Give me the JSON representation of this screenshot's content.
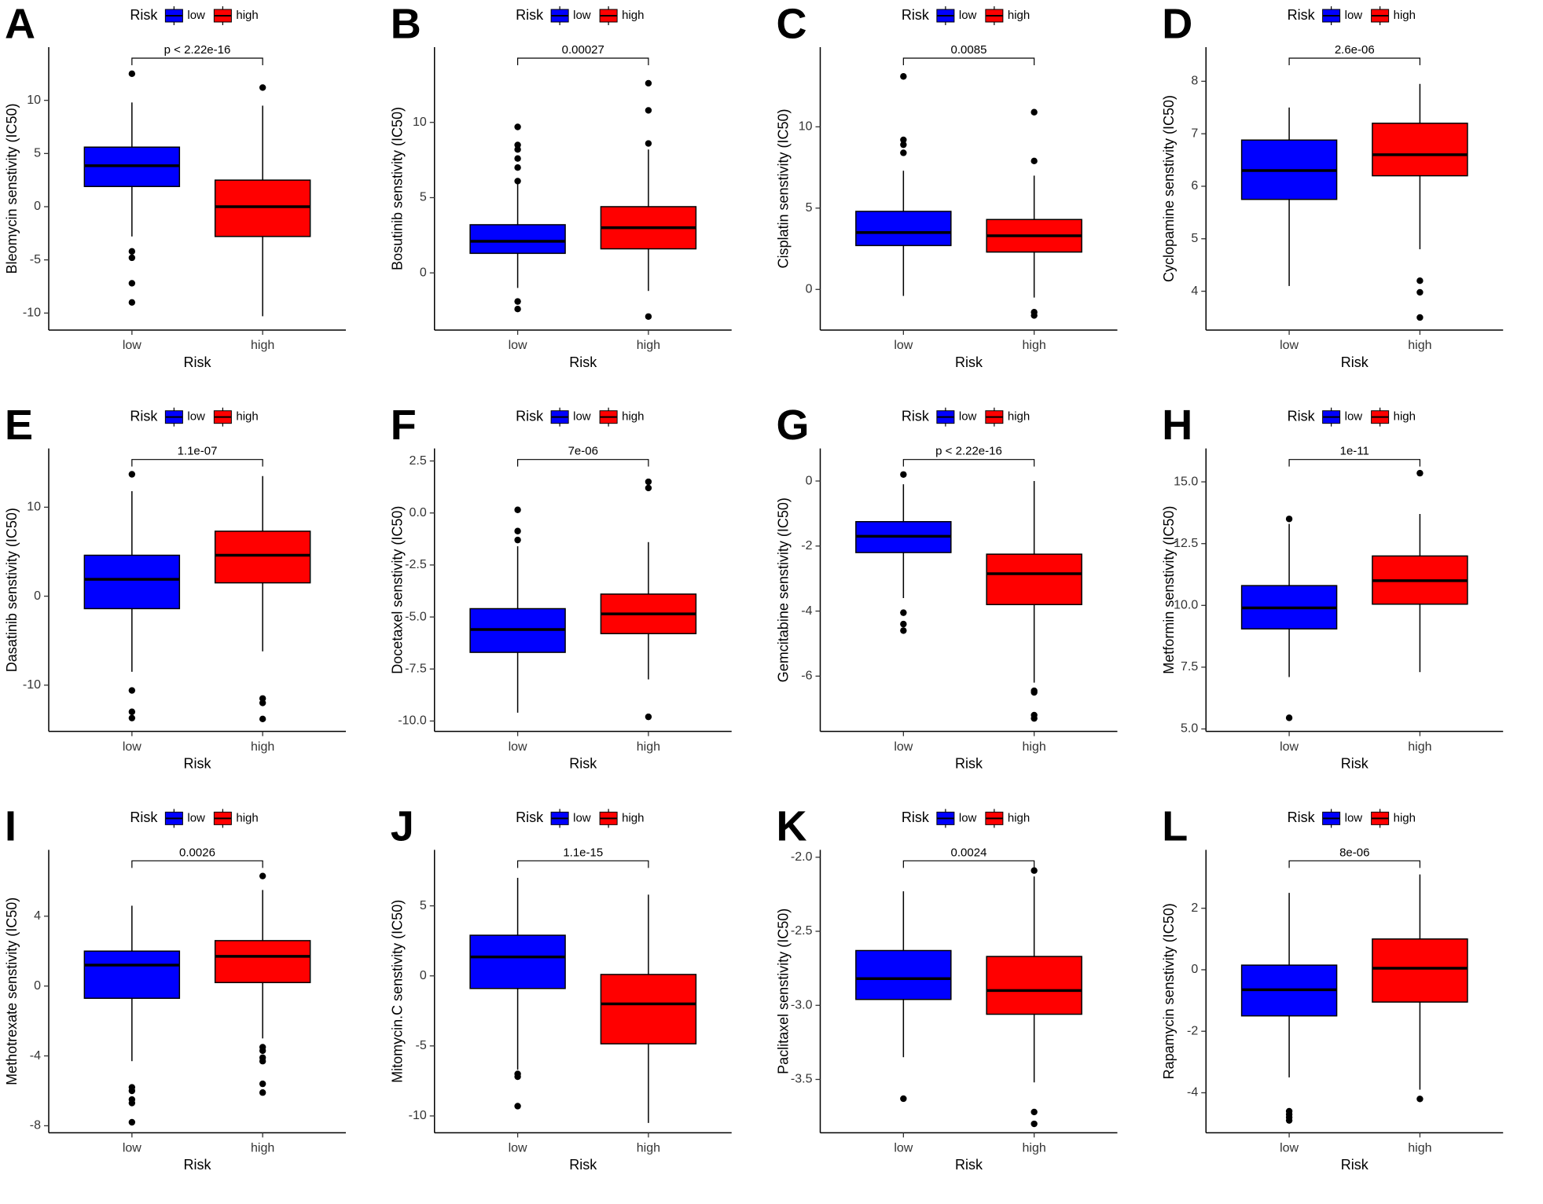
{
  "chart_data": [
    {
      "type": "box",
      "panel_label": "A",
      "ylabel": "Bleomycin senstivity (IC50)",
      "xlabel": "Risk",
      "legend_title": "Risk",
      "annotation": "p < 2.22e-16",
      "categories": [
        "low",
        "high"
      ],
      "ylim": [
        -11.6,
        15
      ],
      "yticks": [
        -10,
        -5,
        0,
        5,
        10
      ],
      "series": [
        {
          "name": "low",
          "color": "#0000ff",
          "whislo": -2.8,
          "q1": 1.9,
          "med": 3.85,
          "q3": 5.6,
          "whishi": 9.8,
          "outliers": [
            12.5,
            -4.2,
            -4.8,
            -7.2,
            -9
          ]
        },
        {
          "name": "high",
          "color": "#ff0000",
          "whislo": -10.3,
          "q1": -2.8,
          "med": 0,
          "q3": 2.5,
          "whishi": 9.5,
          "outliers": [
            11.2
          ]
        }
      ]
    },
    {
      "type": "box",
      "panel_label": "B",
      "ylabel": "Bosutinib senstivity (IC50)",
      "xlabel": "Risk",
      "legend_title": "Risk",
      "annotation": "0.00027",
      "categories": [
        "low",
        "high"
      ],
      "ylim": [
        -3.8,
        15
      ],
      "yticks": [
        0,
        5,
        10
      ],
      "series": [
        {
          "name": "low",
          "color": "#0000ff",
          "whislo": -1.0,
          "q1": 1.3,
          "med": 2.1,
          "q3": 3.2,
          "whishi": 5.9,
          "outliers": [
            6.1,
            7.0,
            7.6,
            8.2,
            8.5,
            9.7,
            -1.9,
            -2.4
          ]
        },
        {
          "name": "high",
          "color": "#ff0000",
          "whislo": -1.2,
          "q1": 1.6,
          "med": 3.0,
          "q3": 4.4,
          "whishi": 8.2,
          "outliers": [
            8.6,
            10.8,
            12.6,
            -2.9
          ]
        }
      ]
    },
    {
      "type": "box",
      "panel_label": "C",
      "ylabel": "Cisplatin senstivity (IC50)",
      "xlabel": "Risk",
      "legend_title": "Risk",
      "annotation": "0.0085",
      "categories": [
        "low",
        "high"
      ],
      "ylim": [
        -2.5,
        14.9
      ],
      "yticks": [
        0,
        5,
        10
      ],
      "series": [
        {
          "name": "low",
          "color": "#0000ff",
          "whislo": -0.4,
          "q1": 2.7,
          "med": 3.5,
          "q3": 4.8,
          "whishi": 7.3,
          "outliers": [
            8.4,
            8.9,
            9.2,
            13.1
          ]
        },
        {
          "name": "high",
          "color": "#ff0000",
          "whislo": -0.5,
          "q1": 2.3,
          "med": 3.3,
          "q3": 4.3,
          "whishi": 7.0,
          "outliers": [
            7.9,
            10.9,
            -1.4,
            -1.6
          ]
        }
      ]
    },
    {
      "type": "box",
      "panel_label": "D",
      "ylabel": "Cyclopamine senstivity (IC50)",
      "xlabel": "Risk",
      "legend_title": "Risk",
      "annotation": "2.6e-06",
      "categories": [
        "low",
        "high"
      ],
      "ylim": [
        3.26,
        8.65
      ],
      "yticks": [
        4,
        5,
        6,
        7,
        8
      ],
      "series": [
        {
          "name": "low",
          "color": "#0000ff",
          "whislo": 4.1,
          "q1": 5.75,
          "med": 6.3,
          "q3": 6.88,
          "whishi": 7.5,
          "outliers": []
        },
        {
          "name": "high",
          "color": "#ff0000",
          "whislo": 4.8,
          "q1": 6.2,
          "med": 6.6,
          "q3": 7.2,
          "whishi": 7.95,
          "outliers": [
            4.2,
            3.98,
            3.5
          ]
        }
      ]
    },
    {
      "type": "box",
      "panel_label": "E",
      "ylabel": "Dasatinib senstivity (IC50)",
      "xlabel": "Risk",
      "legend_title": "Risk",
      "annotation": "1.1e-07",
      "categories": [
        "low",
        "high"
      ],
      "ylim": [
        -15.2,
        16.6
      ],
      "yticks": [
        -10,
        0,
        10
      ],
      "series": [
        {
          "name": "low",
          "color": "#0000ff",
          "whislo": -8.5,
          "q1": -1.4,
          "med": 1.9,
          "q3": 4.6,
          "whishi": 11.8,
          "outliers": [
            13.7,
            -10.6,
            -13,
            -13.7
          ]
        },
        {
          "name": "high",
          "color": "#ff0000",
          "whislo": -6.2,
          "q1": 1.5,
          "med": 4.6,
          "q3": 7.3,
          "whishi": 13.5,
          "outliers": [
            -11.5,
            -12,
            -13.8
          ]
        }
      ]
    },
    {
      "type": "box",
      "panel_label": "F",
      "ylabel": "Docetaxel senstivity (IC50)",
      "xlabel": "Risk",
      "legend_title": "Risk",
      "annotation": "7e-06",
      "categories": [
        "low",
        "high"
      ],
      "ylim": [
        -10.5,
        3.1
      ],
      "yticks": [
        {
          "value": -10,
          "label": "-10.0"
        },
        -7.5,
        {
          "value": -5,
          "label": "-5.0"
        },
        -2.5,
        {
          "value": 0,
          "label": "0.0"
        },
        2.5
      ],
      "series": [
        {
          "name": "low",
          "color": "#0000ff",
          "whislo": -9.6,
          "q1": -6.7,
          "med": -5.6,
          "q3": -4.6,
          "whishi": -1.6,
          "outliers": [
            0.15,
            -0.87,
            -1.3
          ]
        },
        {
          "name": "high",
          "color": "#ff0000",
          "whislo": -8.0,
          "q1": -5.8,
          "med": -4.85,
          "q3": -3.9,
          "whishi": -1.4,
          "outliers": [
            1.5,
            1.2,
            -9.8
          ]
        }
      ]
    },
    {
      "type": "box",
      "panel_label": "G",
      "ylabel": "Gemcitabine senstivity (IC50)",
      "xlabel": "Risk",
      "legend_title": "Risk",
      "annotation": "p < 2.22e-16",
      "categories": [
        "low",
        "high"
      ],
      "ylim": [
        -7.7,
        1.0
      ],
      "yticks": [
        -6,
        -4,
        -2,
        0
      ],
      "series": [
        {
          "name": "low",
          "color": "#0000ff",
          "whislo": -3.6,
          "q1": -2.2,
          "med": -1.7,
          "q3": -1.25,
          "whishi": -0.1,
          "outliers": [
            0.2,
            -4.05,
            -4.4,
            -4.6
          ]
        },
        {
          "name": "high",
          "color": "#ff0000",
          "whislo": -6.2,
          "q1": -3.8,
          "med": -2.85,
          "q3": -2.25,
          "whishi": 0.0,
          "outliers": [
            -6.45,
            -6.5,
            -7.2,
            -7.3
          ]
        }
      ]
    },
    {
      "type": "box",
      "panel_label": "H",
      "ylabel": "Metformin senstivity (IC50)",
      "xlabel": "Risk",
      "legend_title": "Risk",
      "annotation": "1e-11",
      "categories": [
        "low",
        "high"
      ],
      "ylim": [
        4.9,
        16.35
      ],
      "yticks": [
        {
          "value": 5,
          "label": "5.0"
        },
        7.5,
        {
          "value": 10,
          "label": "10.0"
        },
        12.5,
        {
          "value": 15,
          "label": "15.0"
        }
      ],
      "series": [
        {
          "name": "low",
          "color": "#0000ff",
          "whislo": 7.1,
          "q1": 9.05,
          "med": 9.9,
          "q3": 10.8,
          "whishi": 13.3,
          "outliers": [
            13.5,
            5.45
          ]
        },
        {
          "name": "high",
          "color": "#ff0000",
          "whislo": 7.3,
          "q1": 10.05,
          "med": 11.0,
          "q3": 12.0,
          "whishi": 13.7,
          "outliers": [
            15.35
          ]
        }
      ]
    },
    {
      "type": "box",
      "panel_label": "I",
      "ylabel": "Methotrexate senstivity (IC50)",
      "xlabel": "Risk",
      "legend_title": "Risk",
      "annotation": "0.0026",
      "categories": [
        "low",
        "high"
      ],
      "ylim": [
        -8.4,
        7.8
      ],
      "yticks": [
        -8,
        -4,
        0,
        4
      ],
      "series": [
        {
          "name": "low",
          "color": "#0000ff",
          "whislo": -4.3,
          "q1": -0.7,
          "med": 1.2,
          "q3": 2.0,
          "whishi": 4.6,
          "outliers": [
            -5.8,
            -6.0,
            -6.5,
            -6.7,
            -7.8
          ]
        },
        {
          "name": "high",
          "color": "#ff0000",
          "whislo": -3.0,
          "q1": 0.2,
          "med": 1.7,
          "q3": 2.6,
          "whishi": 5.5,
          "outliers": [
            6.3,
            -3.5,
            -3.7,
            -4.1,
            -4.3,
            -5.6,
            -6.1
          ]
        }
      ]
    },
    {
      "type": "box",
      "panel_label": "J",
      "ylabel": "Mitomycin.C senstivity (IC50)",
      "xlabel": "Risk",
      "legend_title": "Risk",
      "annotation": "1.1e-15",
      "categories": [
        "low",
        "high"
      ],
      "ylim": [
        -11.2,
        9.0
      ],
      "yticks": [
        -10,
        -5,
        0,
        5
      ],
      "series": [
        {
          "name": "low",
          "color": "#0000ff",
          "whislo": -6.7,
          "q1": -0.9,
          "med": 1.35,
          "q3": 2.9,
          "whishi": 7.0,
          "outliers": [
            -7.0,
            -7.2,
            -9.3
          ]
        },
        {
          "name": "high",
          "color": "#ff0000",
          "whislo": -10.5,
          "q1": -4.85,
          "med": -2.0,
          "q3": 0.1,
          "whishi": 5.8,
          "outliers": []
        }
      ]
    },
    {
      "type": "box",
      "panel_label": "K",
      "ylabel": "Paclitaxel senstivity (IC50)",
      "xlabel": "Risk",
      "legend_title": "Risk",
      "annotation": "0.0024",
      "categories": [
        "low",
        "high"
      ],
      "ylim": [
        -3.86,
        -1.95
      ],
      "yticks": [
        -3.5,
        {
          "value": -3,
          "label": "-3.0"
        },
        -2.5,
        {
          "value": -2,
          "label": "-2.0"
        }
      ],
      "series": [
        {
          "name": "low",
          "color": "#0000ff",
          "whislo": -3.35,
          "q1": -2.96,
          "med": -2.82,
          "q3": -2.63,
          "whishi": -2.23,
          "outliers": [
            -3.63
          ]
        },
        {
          "name": "high",
          "color": "#ff0000",
          "whislo": -3.52,
          "q1": -3.06,
          "med": -2.9,
          "q3": -2.67,
          "whishi": -2.13,
          "outliers": [
            -2.09,
            -3.72,
            -3.8
          ]
        }
      ]
    },
    {
      "type": "box",
      "panel_label": "L",
      "ylabel": "Rapamycin senstivity (IC50)",
      "xlabel": "Risk",
      "legend_title": "Risk",
      "annotation": "8e-06",
      "categories": [
        "low",
        "high"
      ],
      "ylim": [
        -5.3,
        3.9
      ],
      "yticks": [
        -4,
        -2,
        0,
        2
      ],
      "series": [
        {
          "name": "low",
          "color": "#0000ff",
          "whislo": -3.5,
          "q1": -1.5,
          "med": -0.65,
          "q3": 0.15,
          "whishi": 2.5,
          "outliers": [
            -4.6,
            -4.7,
            -4.8,
            -4.9
          ]
        },
        {
          "name": "high",
          "color": "#ff0000",
          "whislo": -3.9,
          "q1": -1.05,
          "med": 0.05,
          "q3": 1.0,
          "whishi": 3.1,
          "outliers": [
            -4.2
          ]
        }
      ]
    }
  ]
}
